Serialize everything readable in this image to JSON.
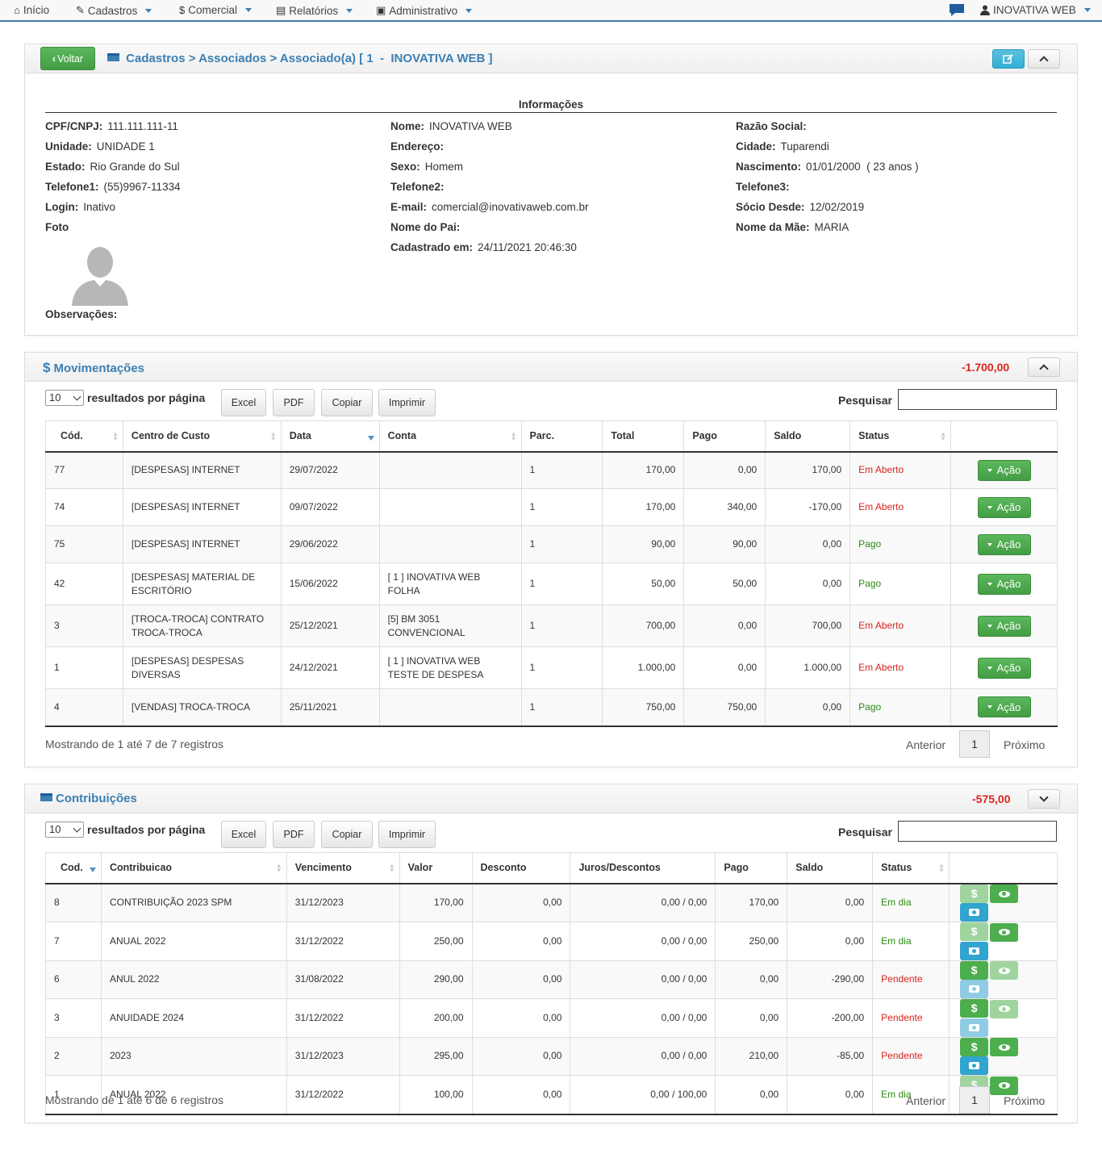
{
  "nav": {
    "inicio": "Início",
    "cadastros": "Cadastros",
    "comercial": "Comercial",
    "relatorios": "Relatórios",
    "administrativo": "Administrativo",
    "user": "INOVATIVA WEB"
  },
  "header": {
    "back": "Voltar",
    "breadcrumb": [
      "Cadastros",
      "Associados",
      "Associado(a) [ 1  -  INOVATIVA WEB ]"
    ],
    "sep": ">"
  },
  "info": {
    "title": "Informações",
    "col1": [
      {
        "label": "CPF/CNPJ:",
        "value": "111.111.111-11"
      },
      {
        "label": "Unidade:",
        "value": "UNIDADE 1"
      },
      {
        "label": "Estado:",
        "value": "Rio Grande do Sul"
      },
      {
        "label": "Telefone1:",
        "value": "(55)9967-11334"
      },
      {
        "label": "Login:",
        "value": "Inativo"
      },
      {
        "label": "Foto",
        "value": ""
      }
    ],
    "col2": [
      {
        "label": "Nome:",
        "value": "INOVATIVA WEB"
      },
      {
        "label": "Endereço:",
        "value": ""
      },
      {
        "label": "Sexo:",
        "value": "Homem"
      },
      {
        "label": "Telefone2:",
        "value": ""
      },
      {
        "label": "E-mail:",
        "value": "comercial@inovativaweb.com.br"
      },
      {
        "label": "Nome do Pai:",
        "value": ""
      },
      {
        "label": "Cadastrado em:",
        "value": "24/11/2021 20:46:30"
      }
    ],
    "col3": [
      {
        "label": "Razão Social:",
        "value": ""
      },
      {
        "label": "Cidade:",
        "value": "Tuparendi"
      },
      {
        "label": "Nascimento:",
        "value": "01/01/2000  ( 23 anos )"
      },
      {
        "label": "Telefone3:",
        "value": ""
      },
      {
        "label": "Sócio Desde:",
        "value": "12/02/2019"
      },
      {
        "label": "Nome da Mãe:",
        "value": "MARIA"
      }
    ],
    "obs_label": "Observações:"
  },
  "common": {
    "per_page_value": "10",
    "per_page_label": "resultados por página",
    "excel": "Excel",
    "pdf": "PDF",
    "copiar": "Copiar",
    "imprimir": "Imprimir",
    "search_label": "Pesquisar",
    "prev": "Anterior",
    "next": "Próximo",
    "page": "1",
    "acao": "Ação"
  },
  "mov": {
    "title": "Movimentações",
    "total": "-1.700,00",
    "columns": [
      "Cód.",
      "Centro de Custo",
      "Data",
      "Conta",
      "Parc.",
      "Total",
      "Pago",
      "Saldo",
      "Status",
      ""
    ],
    "rows": [
      {
        "cod": "77",
        "centro": "[DESPESAS] INTERNET",
        "data": "29/07/2022",
        "conta": "",
        "parc": "1",
        "total": "170,00",
        "pago": "0,00",
        "saldo": "170,00",
        "status": "Em Aberto",
        "st": "red"
      },
      {
        "cod": "74",
        "centro": "[DESPESAS] INTERNET",
        "data": "09/07/2022",
        "conta": "",
        "parc": "1",
        "total": "170,00",
        "pago": "340,00",
        "saldo": "-170,00",
        "status": "Em Aberto",
        "st": "red"
      },
      {
        "cod": "75",
        "centro": "[DESPESAS] INTERNET",
        "data": "29/06/2022",
        "conta": "",
        "parc": "1",
        "total": "90,00",
        "pago": "90,00",
        "saldo": "0,00",
        "status": "Pago",
        "st": "green"
      },
      {
        "cod": "42",
        "centro": "[DESPESAS] MATERIAL DE ESCRITÓRIO",
        "data": "15/06/2022",
        "conta": "[ 1 ] INOVATIVA WEB FOLHA",
        "parc": "1",
        "total": "50,00",
        "pago": "50,00",
        "saldo": "0,00",
        "status": "Pago",
        "st": "green"
      },
      {
        "cod": "3",
        "centro": "[TROCA-TROCA] CONTRATO TROCA-TROCA",
        "data": "25/12/2021",
        "conta": "[5] BM 3051 CONVENCIONAL",
        "parc": "1",
        "total": "700,00",
        "pago": "0,00",
        "saldo": "700,00",
        "status": "Em Aberto",
        "st": "red"
      },
      {
        "cod": "1",
        "centro": "[DESPESAS] DESPESAS DIVERSAS",
        "data": "24/12/2021",
        "conta": "[ 1 ] INOVATIVA WEB TESTE DE DESPESA",
        "parc": "1",
        "total": "1.000,00",
        "pago": "0,00",
        "saldo": "1.000,00",
        "status": "Em Aberto",
        "st": "red"
      },
      {
        "cod": "4",
        "centro": "[VENDAS] TROCA-TROCA",
        "data": "25/11/2021",
        "conta": "",
        "parc": "1",
        "total": "750,00",
        "pago": "750,00",
        "saldo": "0,00",
        "status": "Pago",
        "st": "green"
      }
    ],
    "info": "Mostrando de 1 até 7 de 7 registros"
  },
  "contrib": {
    "title": "Contribuições",
    "total": "-575,00",
    "columns": [
      "Cod.",
      "Contribuicao",
      "Vencimento",
      "Valor",
      "Desconto",
      "Juros/Descontos",
      "Pago",
      "Saldo",
      "Status",
      ""
    ],
    "rows": [
      {
        "cod": "8",
        "nome": "CONTRIBUIÇÃO 2023 SPM",
        "venc": "31/12/2023",
        "valor": "170,00",
        "desc": "0,00",
        "juros": "0,00 / 0,00",
        "pago": "170,00",
        "saldo": "0,00",
        "status": "Em dia",
        "st": "green",
        "pay": "gl",
        "view": "g",
        "cam": "b"
      },
      {
        "cod": "7",
        "nome": "ANUAL 2022",
        "venc": "31/12/2022",
        "valor": "250,00",
        "desc": "0,00",
        "juros": "0,00 / 0,00",
        "pago": "250,00",
        "saldo": "0,00",
        "status": "Em dia",
        "st": "green",
        "pay": "gl",
        "view": "g",
        "cam": "b"
      },
      {
        "cod": "6",
        "nome": "ANUL 2022",
        "venc": "31/08/2022",
        "valor": "290,00",
        "desc": "0,00",
        "juros": "0,00 / 0,00",
        "pago": "0,00",
        "saldo": "-290,00",
        "status": "Pendente",
        "st": "red",
        "pay": "g",
        "view": "gl",
        "cam": "bl"
      },
      {
        "cod": "3",
        "nome": "ANUIDADE 2024",
        "venc": "31/12/2022",
        "valor": "200,00",
        "desc": "0,00",
        "juros": "0,00 / 0,00",
        "pago": "0,00",
        "saldo": "-200,00",
        "status": "Pendente",
        "st": "red",
        "pay": "g",
        "view": "gl",
        "cam": "bl"
      },
      {
        "cod": "2",
        "nome": "2023",
        "venc": "31/12/2023",
        "valor": "295,00",
        "desc": "0,00",
        "juros": "0,00 / 0,00",
        "pago": "210,00",
        "saldo": "-85,00",
        "status": "Pendente",
        "st": "red",
        "pay": "g",
        "view": "g",
        "cam": "b"
      },
      {
        "cod": "1",
        "nome": "ANUAL 2022",
        "venc": "31/12/2022",
        "valor": "100,00",
        "desc": "0,00",
        "juros": "0,00 / 100,00",
        "pago": "0,00",
        "saldo": "0,00",
        "status": "Em dia",
        "st": "green",
        "pay": "gl",
        "view": "g",
        "cam": "b"
      }
    ],
    "info": "Mostrando de 1 até 6 de 6 registros"
  },
  "colors": {
    "accent": "#3c7fb1",
    "green": "#5cb85c",
    "red": "#d9231b"
  }
}
